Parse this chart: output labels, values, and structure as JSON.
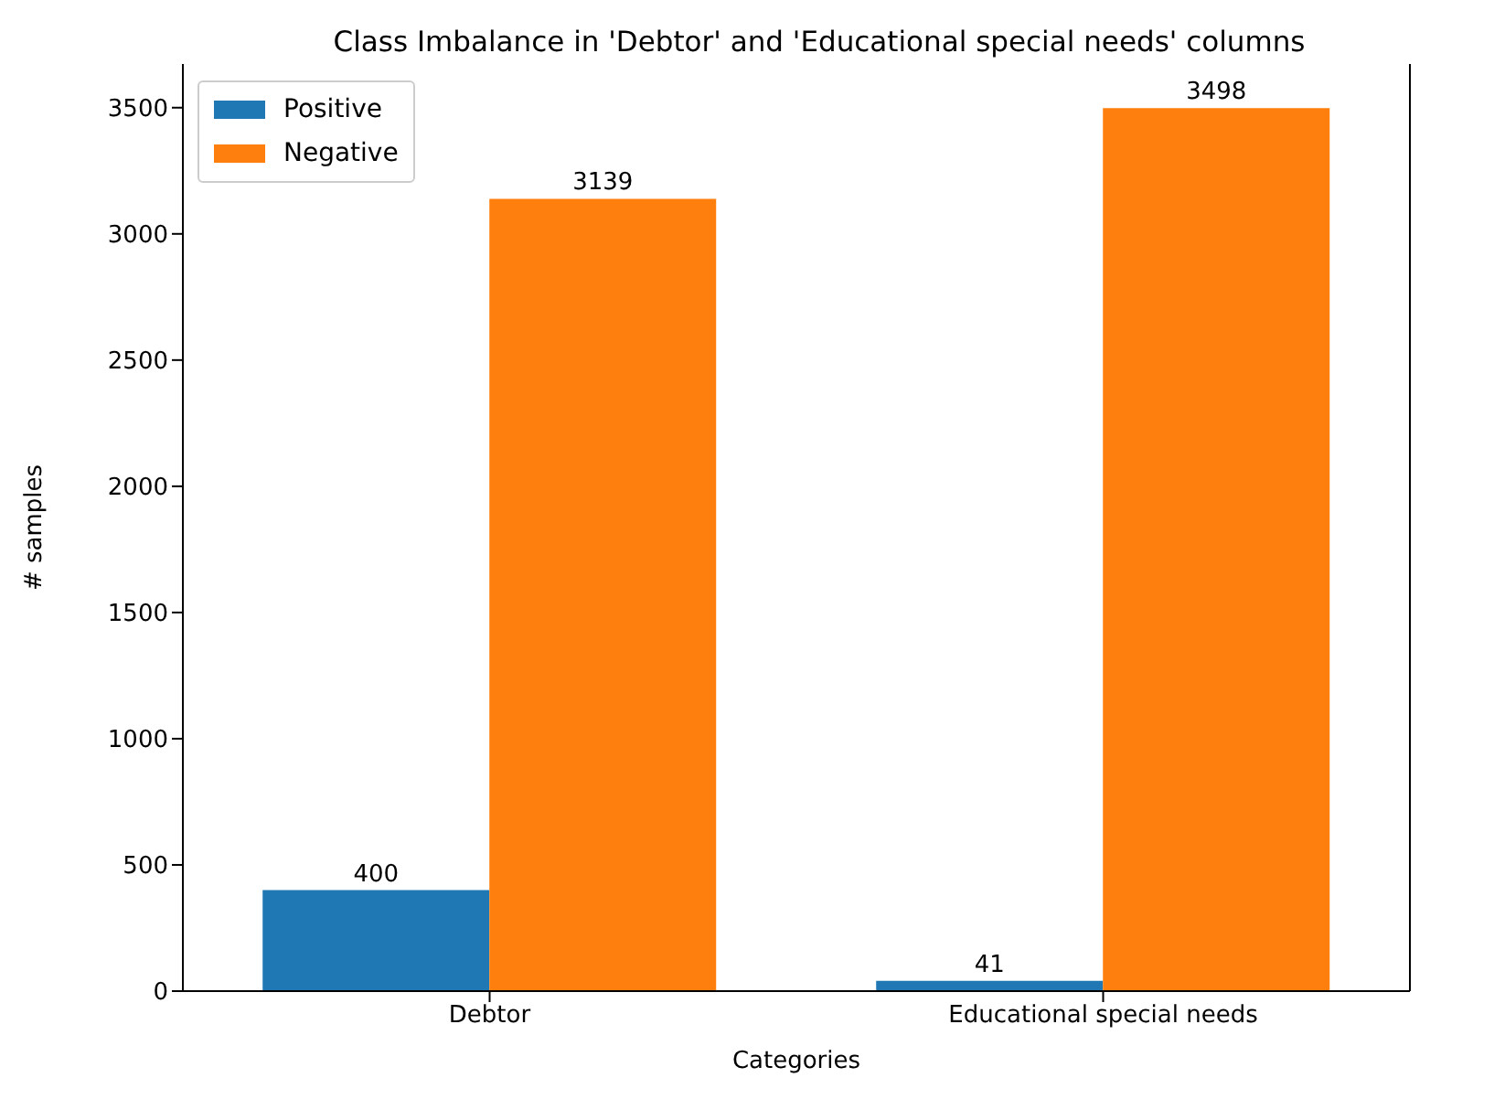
{
  "chart_data": {
    "type": "bar",
    "title": "Class Imbalance in 'Debtor' and 'Educational special needs' columns",
    "xlabel": "Categories",
    "ylabel": "# samples",
    "categories": [
      "Debtor",
      "Educational special needs"
    ],
    "series": [
      {
        "name": "Positive",
        "color": "#1f77b4",
        "values": [
          400,
          41
        ]
      },
      {
        "name": "Negative",
        "color": "#ff7f0e",
        "values": [
          3139,
          3498
        ]
      }
    ],
    "ylim": [
      0,
      3673
    ],
    "yticks": [
      0,
      500,
      1000,
      1500,
      2000,
      2500,
      3000,
      3500
    ],
    "data_labels": true,
    "legend": "top left",
    "grid": false
  }
}
